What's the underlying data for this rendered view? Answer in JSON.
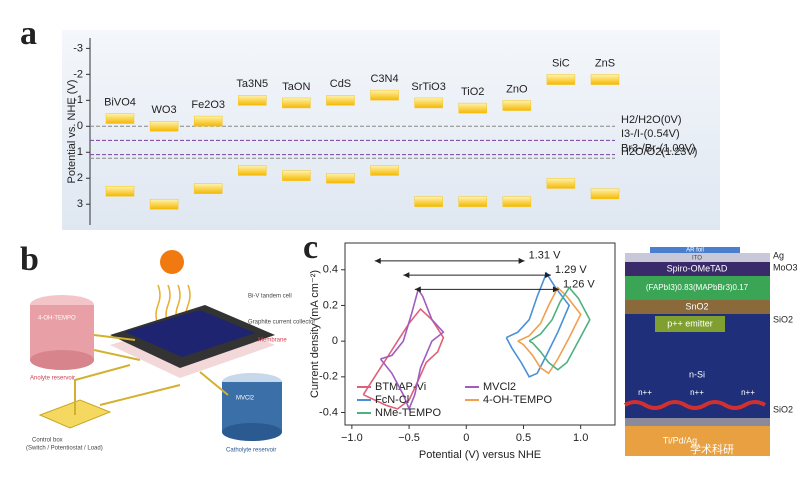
{
  "panel_labels": [
    "a",
    "b",
    "c"
  ],
  "chart_data": [
    {
      "type": "band_edge",
      "ylabel": "Potential vs. NHE (V)",
      "categories": [
        "BiVO4",
        "WO3",
        "Fe2O3",
        "Ta3N5",
        "TaON",
        "CdS",
        "C3N4",
        "SrTiO3",
        "TiO2",
        "ZnO",
        "SiC",
        "ZnS"
      ],
      "cb_values": [
        -0.3,
        0.0,
        -0.2,
        -1.0,
        -0.9,
        -1.0,
        -1.2,
        -0.9,
        -0.7,
        -0.8,
        -1.8,
        -1.8
      ],
      "vb_values": [
        2.5,
        3.0,
        2.4,
        1.7,
        1.9,
        2.0,
        1.7,
        2.9,
        2.9,
        2.9,
        2.2,
        2.6
      ],
      "color": "#f5c518",
      "ylim": [
        -3.4,
        3.8
      ],
      "y_inverted": true,
      "yticks": [
        -3,
        -2,
        -1,
        0,
        1,
        2,
        3
      ],
      "reference_lines": [
        {
          "label": "H2/H2O(0V)",
          "value": 0,
          "color": "#888"
        },
        {
          "label": "I3-/I-(0.54V)",
          "value": 0.54,
          "color": "#7a3fa0"
        },
        {
          "label": "Br3-/Br-(1.09V)",
          "value": 1.09,
          "color": "#7a3fa0"
        },
        {
          "label": "H2O/O2(1.23V)",
          "value": 1.23,
          "color": "#888"
        }
      ]
    },
    {
      "type": "line",
      "xlabel": "Potential (V) versus NHE",
      "ylabel": "Current density (mA cm⁻²)",
      "xlim": [
        -1.06,
        1.3
      ],
      "ylim": [
        -0.47,
        0.55
      ],
      "xticks": [
        {
          "value": -1.0,
          "label": "−1.0"
        },
        {
          "value": -0.5,
          "label": "−0.5"
        },
        0,
        0.5,
        {
          "value": 1.0,
          "label": "1.0"
        }
      ],
      "yticks": [
        -0.4,
        -0.2,
        0,
        0.2,
        0.4
      ],
      "legend": "lower left",
      "series": [
        {
          "name": "BTMAP-Vi",
          "color": "#e0607a",
          "x": [
            -0.9,
            -0.8,
            -0.7,
            -0.6,
            -0.5,
            -0.42,
            -0.35,
            -0.25,
            -0.2,
            -0.3,
            -0.4,
            -0.5,
            -0.6,
            -0.7,
            -0.8,
            -0.9
          ],
          "values": [
            -0.3,
            -0.33,
            -0.36,
            -0.38,
            -0.33,
            -0.22,
            -0.12,
            -0.06,
            0.02,
            0.12,
            0.18,
            0.1,
            0.0,
            -0.1,
            -0.2,
            -0.3
          ]
        },
        {
          "name": "MVCl2",
          "color": "#a05cc0",
          "x": [
            -0.75,
            -0.65,
            -0.55,
            -0.48,
            -0.42,
            -0.38,
            -0.3,
            -0.2,
            -0.3,
            -0.4,
            -0.45,
            -0.5,
            -0.55,
            -0.65,
            -0.75
          ],
          "values": [
            -0.1,
            -0.08,
            0.0,
            0.15,
            0.29,
            0.25,
            0.12,
            0.05,
            0.0,
            -0.15,
            -0.3,
            -0.38,
            -0.3,
            -0.18,
            -0.1
          ]
        },
        {
          "name": "FcN-Cl",
          "color": "#4a90d9",
          "x": [
            0.35,
            0.45,
            0.55,
            0.62,
            0.7,
            0.78,
            0.9,
            0.8,
            0.7,
            0.62,
            0.55,
            0.48,
            0.4,
            0.35
          ],
          "values": [
            0.02,
            0.05,
            0.12,
            0.25,
            0.38,
            0.3,
            0.2,
            0.05,
            -0.08,
            -0.18,
            -0.2,
            -0.12,
            -0.04,
            0.02
          ]
        },
        {
          "name": "4-OH-TEMPO",
          "color": "#f0a050",
          "x": [
            0.45,
            0.55,
            0.65,
            0.72,
            0.8,
            0.88,
            1.0,
            0.9,
            0.8,
            0.72,
            0.65,
            0.58,
            0.5,
            0.45
          ],
          "values": [
            0.0,
            0.03,
            0.1,
            0.2,
            0.3,
            0.25,
            0.15,
            0.02,
            -0.1,
            -0.18,
            -0.15,
            -0.08,
            -0.02,
            0.0
          ]
        },
        {
          "name": "NMe-TEMPO",
          "color": "#4fb080",
          "x": [
            0.55,
            0.65,
            0.75,
            0.82,
            0.9,
            0.98,
            1.08,
            0.98,
            0.88,
            0.8,
            0.72,
            0.65,
            0.58,
            0.55
          ],
          "values": [
            0.0,
            0.04,
            0.12,
            0.22,
            0.3,
            0.24,
            0.12,
            0.0,
            -0.12,
            -0.16,
            -0.12,
            -0.06,
            -0.01,
            0.0
          ]
        }
      ],
      "annotations": [
        {
          "text": "1.31 V",
          "x": [
            -0.8,
            0.51
          ],
          "y": 0.45
        },
        {
          "text": "1.29 V",
          "x": [
            -0.55,
            0.74
          ],
          "y": 0.37
        },
        {
          "text": "1.26 V",
          "x": [
            -0.45,
            0.81
          ],
          "y": 0.29
        }
      ]
    }
  ],
  "diagram_b": {
    "anolyte": "4-OH-TEMPO",
    "anolyte_reservoir": "Anolyte reservoir",
    "cell": "Bi-V tandem cell",
    "collector": "Graphite current collector",
    "membrane": "Membrane",
    "catholyte": "MVCl2",
    "catholyte_reservoir": "Catholyte reservoir",
    "control": "Control box",
    "control_sub": "(Switch / Potentiostat / Load)"
  },
  "device_stack": {
    "layers": [
      "AR foil",
      "ITO",
      "Spiro-OMeTAD",
      "(FAPbI3)0.83(MAPbBr3)0.17",
      "SnO2",
      "p++ emitter",
      "n-Si",
      "Ti/Pd/Ag"
    ],
    "doping": [
      "n++",
      "n++",
      "n++"
    ],
    "side": [
      "Ag",
      "MoO3",
      "SiO2",
      "SiO2"
    ]
  },
  "watermark": "学术科研"
}
